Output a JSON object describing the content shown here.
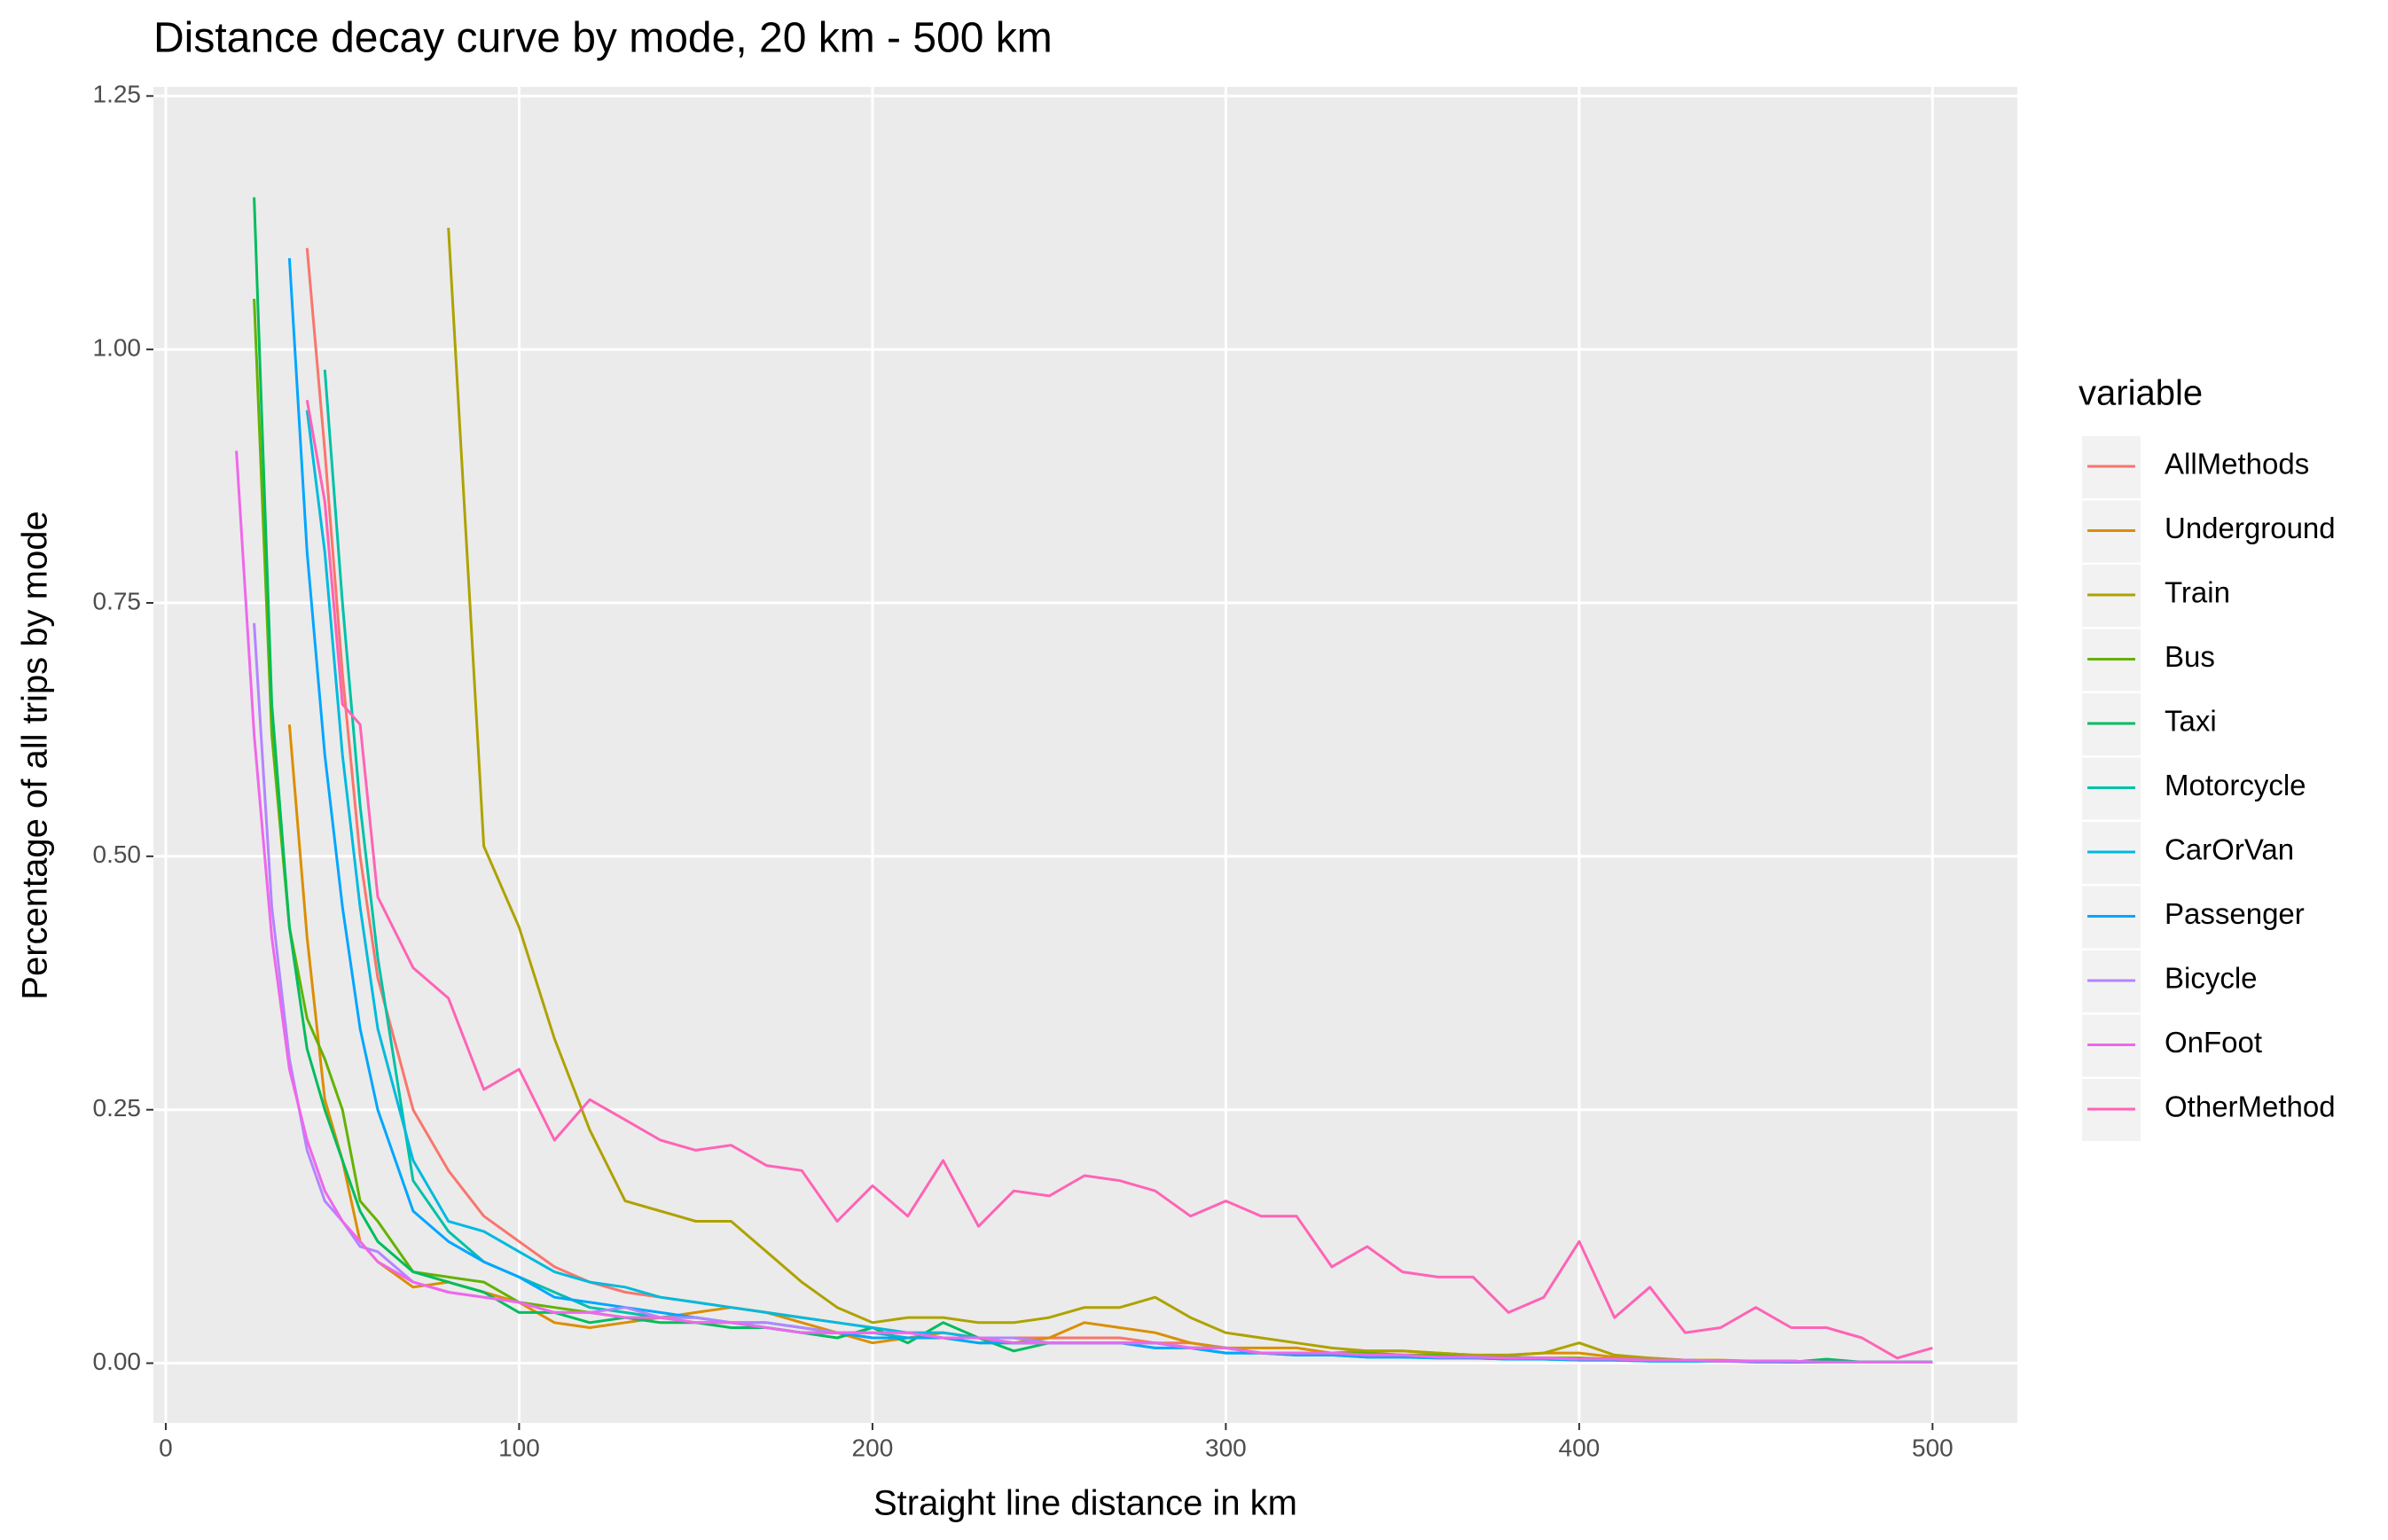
{
  "chart_data": {
    "type": "line",
    "title": "Distance decay curve by mode, 20 km - 500 km",
    "x_label": "Straight line distance in km",
    "y_label": "Percentage of all trips by mode",
    "legend_title": "variable",
    "legend_position": "right",
    "grid": true,
    "xlim": [
      -3.5,
      524
    ],
    "ylim": [
      -0.059,
      1.259
    ],
    "xticks": [
      0,
      100,
      200,
      300,
      400,
      500
    ],
    "yticks": [
      {
        "value": 0,
        "label": "0.00"
      },
      {
        "value": 0.25,
        "label": "0.25"
      },
      {
        "value": 0.5,
        "label": "0.50"
      },
      {
        "value": 0.75,
        "label": "0.75"
      },
      {
        "value": 1,
        "label": "1.00"
      },
      {
        "value": 1.25,
        "label": "1.25"
      }
    ],
    "x": [
      20,
      25,
      30,
      35,
      40,
      45,
      50,
      55,
      60,
      70,
      80,
      90,
      100,
      110,
      120,
      130,
      140,
      150,
      160,
      170,
      180,
      190,
      200,
      210,
      220,
      230,
      240,
      250,
      260,
      270,
      280,
      290,
      300,
      310,
      320,
      330,
      340,
      350,
      360,
      370,
      380,
      390,
      400,
      410,
      420,
      430,
      440,
      450,
      460,
      470,
      480,
      490,
      500
    ],
    "series": [
      {
        "name": "AllMethods",
        "color": "#F8766D",
        "values": [
          null,
          null,
          null,
          null,
          1.1,
          0.9,
          0.68,
          0.5,
          0.38,
          0.25,
          0.19,
          0.145,
          0.12,
          0.095,
          0.08,
          0.07,
          0.065,
          0.06,
          0.055,
          0.05,
          0.045,
          0.04,
          0.035,
          0.03,
          0.03,
          0.025,
          0.025,
          0.025,
          0.025,
          0.025,
          0.02,
          0.02,
          0.015,
          0.01,
          0.01,
          0.01,
          0.01,
          0.008,
          0.008,
          0.006,
          0.006,
          0.005,
          0.005,
          0.004,
          0.003,
          0.003,
          0.002,
          0.002,
          0.002,
          0.001,
          0.001,
          0.001,
          0.001
        ]
      },
      {
        "name": "Underground",
        "color": "#DB8E00",
        "values": [
          null,
          null,
          null,
          0.63,
          0.42,
          0.26,
          0.2,
          0.12,
          0.1,
          0.075,
          0.08,
          0.07,
          0.06,
          0.04,
          0.035,
          0.04,
          0.045,
          0.05,
          0.055,
          0.05,
          0.04,
          0.03,
          0.02,
          0.025,
          0.03,
          0.025,
          0.02,
          0.025,
          0.04,
          0.035,
          0.03,
          0.02,
          0.015,
          0.015,
          0.015,
          0.01,
          0.012,
          0.012,
          0.01,
          0.008,
          0.008,
          0.01,
          0.01,
          0.006,
          0.005,
          0.003,
          0.003,
          0.002,
          0.002,
          0.001,
          0.001,
          0.001,
          0.001
        ]
      },
      {
        "name": "Train",
        "color": "#AEA200",
        "values": [
          null,
          null,
          null,
          null,
          null,
          null,
          null,
          null,
          null,
          null,
          1.12,
          0.51,
          0.43,
          0.32,
          0.23,
          0.16,
          0.15,
          0.14,
          0.14,
          0.11,
          0.08,
          0.055,
          0.04,
          0.045,
          0.045,
          0.04,
          0.04,
          0.045,
          0.055,
          0.055,
          0.065,
          0.045,
          0.03,
          0.025,
          0.02,
          0.015,
          0.012,
          0.012,
          0.01,
          0.008,
          0.008,
          0.01,
          0.02,
          0.008,
          0.005,
          0.003,
          0.002,
          0.002,
          0.001,
          0.001,
          0.001,
          0.001,
          0.001
        ]
      },
      {
        "name": "Bus",
        "color": "#64B200",
        "values": [
          null,
          1.05,
          0.62,
          0.43,
          0.34,
          0.3,
          0.25,
          0.16,
          0.14,
          0.09,
          0.085,
          0.08,
          0.06,
          0.055,
          0.05,
          0.045,
          0.045,
          0.04,
          0.04,
          0.035,
          0.03,
          0.03,
          0.025,
          0.025,
          0.025,
          0.02,
          0.02,
          0.02,
          0.02,
          0.02,
          0.02,
          0.015,
          0.015,
          0.01,
          0.01,
          0.01,
          0.01,
          0.008,
          0.008,
          0.006,
          0.006,
          0.005,
          0.005,
          0.004,
          0.003,
          0.003,
          0.002,
          0.002,
          0.002,
          0.001,
          0.001,
          0.001,
          0.001
        ]
      },
      {
        "name": "Taxi",
        "color": "#00BD5C",
        "values": [
          null,
          1.15,
          0.65,
          0.43,
          0.31,
          0.25,
          0.2,
          0.15,
          0.12,
          0.09,
          0.08,
          0.07,
          0.05,
          0.05,
          0.04,
          0.045,
          0.04,
          0.04,
          0.035,
          0.035,
          0.03,
          0.025,
          0.035,
          0.02,
          0.04,
          0.025,
          0.012,
          0.02,
          0.02,
          0.02,
          0.02,
          0.015,
          0.01,
          0.01,
          0.008,
          0.008,
          0.006,
          0.006,
          0.005,
          0.005,
          0.004,
          0.004,
          0.003,
          0.003,
          0.002,
          0.002,
          0.002,
          0.002,
          0.001,
          0.004,
          0.001,
          0.001,
          0.001
        ]
      },
      {
        "name": "Motorcycle",
        "color": "#00C1A7",
        "values": [
          null,
          null,
          null,
          null,
          null,
          0.98,
          0.75,
          0.55,
          0.4,
          0.18,
          0.13,
          0.1,
          0.085,
          0.07,
          0.055,
          0.05,
          0.045,
          0.045,
          0.04,
          0.04,
          0.035,
          0.03,
          0.03,
          0.025,
          0.025,
          0.025,
          0.02,
          0.02,
          0.02,
          0.02,
          0.02,
          0.015,
          0.015,
          0.01,
          0.008,
          0.008,
          0.008,
          0.006,
          0.006,
          0.005,
          0.005,
          0.004,
          0.004,
          0.003,
          0.003,
          0.002,
          0.002,
          0.002,
          0.001,
          0.001,
          0.001,
          0.001,
          0.001
        ]
      },
      {
        "name": "CarOrVan",
        "color": "#00BADE",
        "values": [
          null,
          null,
          null,
          null,
          0.94,
          0.8,
          0.6,
          0.45,
          0.33,
          0.2,
          0.14,
          0.13,
          0.11,
          0.09,
          0.08,
          0.075,
          0.065,
          0.06,
          0.055,
          0.05,
          0.045,
          0.04,
          0.035,
          0.03,
          0.03,
          0.025,
          0.025,
          0.02,
          0.02,
          0.02,
          0.02,
          0.015,
          0.015,
          0.01,
          0.01,
          0.01,
          0.008,
          0.008,
          0.006,
          0.006,
          0.005,
          0.005,
          0.004,
          0.004,
          0.003,
          0.003,
          0.002,
          0.002,
          0.002,
          0.001,
          0.001,
          0.001,
          0.001
        ]
      },
      {
        "name": "Passenger",
        "color": "#00A6FF",
        "values": [
          null,
          null,
          null,
          1.09,
          0.8,
          0.6,
          0.45,
          0.33,
          0.25,
          0.15,
          0.12,
          0.1,
          0.085,
          0.065,
          0.06,
          0.055,
          0.05,
          0.045,
          0.04,
          0.035,
          0.03,
          0.03,
          0.025,
          0.025,
          0.025,
          0.02,
          0.02,
          0.02,
          0.02,
          0.02,
          0.015,
          0.015,
          0.01,
          0.01,
          0.008,
          0.008,
          0.006,
          0.006,
          0.005,
          0.005,
          0.004,
          0.004,
          0.003,
          0.003,
          0.002,
          0.002,
          0.002,
          0.001,
          0.001,
          0.001,
          0.001,
          0.001,
          0.001
        ]
      },
      {
        "name": "Bicycle",
        "color": "#B385FF",
        "values": [
          null,
          0.73,
          0.45,
          0.3,
          0.21,
          0.16,
          0.14,
          0.115,
          0.11,
          0.08,
          0.07,
          0.065,
          0.06,
          0.05,
          0.05,
          0.055,
          0.045,
          0.045,
          0.04,
          0.04,
          0.035,
          0.03,
          0.03,
          0.03,
          0.025,
          0.025,
          0.025,
          0.02,
          0.02,
          0.02,
          0.02,
          0.015,
          0.015,
          0.01,
          0.01,
          0.01,
          0.008,
          0.008,
          0.006,
          0.006,
          0.005,
          0.005,
          0.004,
          0.004,
          0.003,
          0.003,
          0.002,
          0.002,
          0.002,
          0.001,
          0.001,
          0.001,
          0.001
        ]
      },
      {
        "name": "OnFoot",
        "color": "#EF67EB",
        "values": [
          0.9,
          0.62,
          0.42,
          0.29,
          0.22,
          0.17,
          0.14,
          0.12,
          0.1,
          0.08,
          0.07,
          0.065,
          0.06,
          0.05,
          0.05,
          0.045,
          0.045,
          0.04,
          0.04,
          0.035,
          0.03,
          0.03,
          0.03,
          0.03,
          0.025,
          0.025,
          0.02,
          0.02,
          0.02,
          0.02,
          0.02,
          0.015,
          0.015,
          0.01,
          0.01,
          0.01,
          0.008,
          0.008,
          0.006,
          0.006,
          0.005,
          0.005,
          0.004,
          0.004,
          0.003,
          0.003,
          0.002,
          0.002,
          0.002,
          0.001,
          0.001,
          0.001,
          0.001
        ]
      },
      {
        "name": "OtherMethod",
        "color": "#FF63B6",
        "values": [
          null,
          null,
          null,
          null,
          0.95,
          0.85,
          0.65,
          0.63,
          0.46,
          0.39,
          0.36,
          0.27,
          0.29,
          0.22,
          0.26,
          0.24,
          0.22,
          0.21,
          0.215,
          0.195,
          0.19,
          0.14,
          0.175,
          0.145,
          0.2,
          0.135,
          0.17,
          0.165,
          0.185,
          0.18,
          0.17,
          0.145,
          0.16,
          0.145,
          0.145,
          0.095,
          0.115,
          0.09,
          0.085,
          0.085,
          0.05,
          0.065,
          0.12,
          0.045,
          0.075,
          0.03,
          0.035,
          0.055,
          0.035,
          0.035,
          0.025,
          0.005,
          0.015
        ]
      }
    ]
  }
}
